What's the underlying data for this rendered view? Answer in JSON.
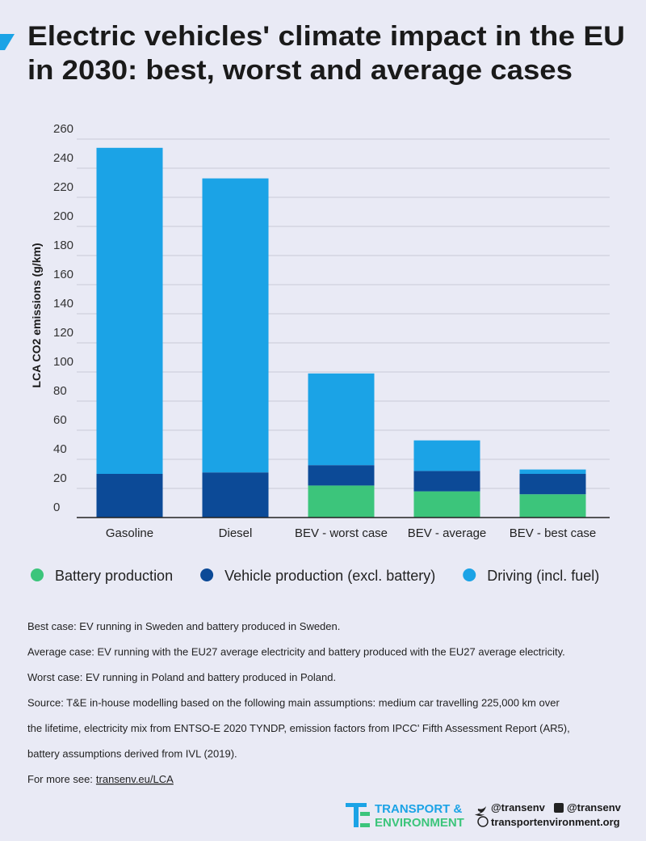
{
  "chart_data": {
    "type": "stacked-bar",
    "title": [
      "Electric vehicles' climate impact in the EU",
      "in 2030: best, worst and average cases"
    ],
    "y_label": "LCA CO2 emissions (g/km)",
    "categories": [
      "Gasoline",
      "Diesel",
      "BEV - worst case",
      "BEV - average",
      "BEV - best case"
    ],
    "series": [
      {
        "name": "Battery production",
        "color": "#3cc57b",
        "values": [
          0,
          0,
          22,
          18,
          16
        ]
      },
      {
        "name": "Vehicle production (excl. battery)",
        "color": "#0c4a97",
        "values": [
          30,
          31,
          14,
          14,
          14
        ]
      },
      {
        "name": "Driving (incl. fuel)",
        "color": "#1ba3e6",
        "values": [
          224,
          202,
          63,
          21,
          3
        ]
      }
    ],
    "ylim": [
      0,
      260
    ],
    "yticks": [
      0,
      20,
      40,
      60,
      80,
      100,
      120,
      140,
      160,
      180,
      200,
      220,
      240,
      260
    ],
    "grid": true
  },
  "notes": [
    "Best case: EV running in Sweden and battery produced in Sweden.",
    "Average case: EV running with the EU27 average electricity and battery produced with the EU27 average electricity.",
    "Worst case: EV running in Poland and battery produced in Poland.",
    "Source: T&E in-house modelling based on the following main assumptions: medium car travelling 225,000 km over",
    "the lifetime, electricity mix from ENTSO-E 2020 TYNDP, emission factors from IPCC' Fifth Assessment Report (AR5),",
    "battery assumptions derived from IVL (2019)."
  ],
  "more": {
    "label": "For more see:",
    "link": "transenv.eu/LCA"
  },
  "footer": {
    "logo_line1": "TRANSPORT &",
    "logo_line2": "ENVIRONMENT",
    "twitter": "@transenv",
    "facebook": "@transenv",
    "website": "transportenvironment.org"
  }
}
